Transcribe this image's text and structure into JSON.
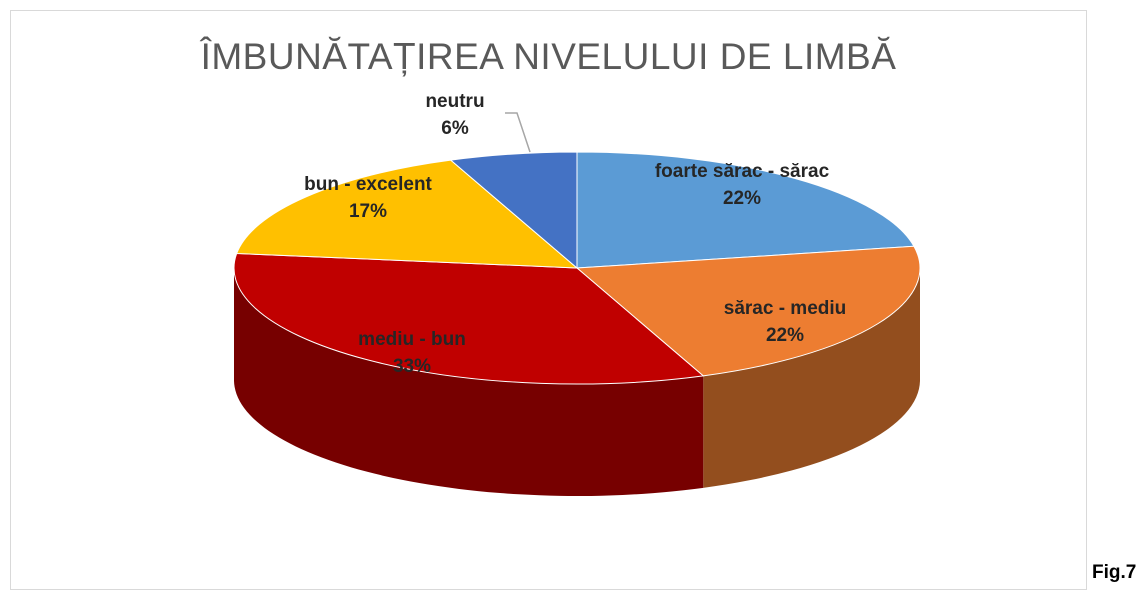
{
  "chart_data": {
    "type": "pie",
    "title": "ÎMBUNĂTAȚIREA NIVELULUI DE LIMBĂ",
    "categories": [
      "foarte sărac - sărac",
      "sărac - mediu",
      "mediu - bun",
      "bun - excelent",
      "neutru"
    ],
    "values": [
      22,
      22,
      33,
      17,
      6
    ],
    "value_labels": [
      "22%",
      "22%",
      "33%",
      "17%",
      "6%"
    ],
    "colors": [
      "#5b9bd5",
      "#ed7d31",
      "#c00000",
      "#ffc000",
      "#4472c4"
    ]
  },
  "caption": "Fig.7"
}
